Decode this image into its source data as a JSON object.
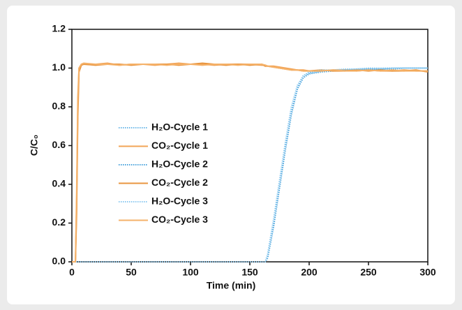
{
  "chart_data": {
    "type": "line",
    "xlabel": "Time (min)",
    "ylabel": "C/C₀",
    "x": [
      0,
      3,
      4,
      5,
      6,
      8,
      10,
      20,
      30,
      40,
      50,
      60,
      70,
      80,
      90,
      100,
      110,
      120,
      130,
      140,
      150,
      160,
      163,
      165,
      170,
      175,
      180,
      185,
      190,
      195,
      200,
      210,
      220,
      230,
      240,
      250,
      260,
      270,
      280,
      290,
      300
    ],
    "series": [
      {
        "name": "H₂O-Cycle 1",
        "color": "#6cb8e8",
        "dash": "dotted",
        "values": [
          0,
          0,
          0,
          0,
          0,
          0,
          0,
          0,
          0,
          0,
          0,
          0,
          0,
          0,
          0,
          0,
          0,
          0,
          0,
          0,
          0,
          0,
          0,
          0.03,
          0.2,
          0.4,
          0.6,
          0.78,
          0.9,
          0.96,
          0.975,
          0.985,
          0.99,
          0.99,
          0.995,
          0.995,
          0.995,
          1.0,
          1.0,
          1.0,
          1.0
        ]
      },
      {
        "name": "CO₂-Cycle 1",
        "color": "#f2a457",
        "dash": "solid",
        "values": [
          0,
          0,
          0.3,
          0.8,
          1.0,
          1.02,
          1.02,
          1.02,
          1.025,
          1.015,
          1.02,
          1.02,
          1.015,
          1.02,
          1.025,
          1.02,
          1.02,
          1.015,
          1.02,
          1.02,
          1.02,
          1.015,
          1.015,
          1.01,
          1.01,
          1.005,
          1.0,
          0.995,
          0.99,
          0.99,
          0.985,
          0.985,
          0.99,
          0.99,
          0.985,
          0.99,
          0.985,
          0.985,
          0.99,
          0.985,
          0.985
        ]
      },
      {
        "name": "H₂O-Cycle 2",
        "color": "#4aa3dc",
        "dash": "dotted",
        "values": [
          0,
          0,
          0,
          0,
          0,
          0,
          0,
          0,
          0,
          0,
          0,
          0,
          0,
          0,
          0,
          0,
          0,
          0,
          0,
          0,
          0,
          0,
          0,
          0.02,
          0.18,
          0.38,
          0.58,
          0.76,
          0.89,
          0.95,
          0.97,
          0.98,
          0.985,
          0.99,
          0.99,
          0.995,
          0.995,
          0.995,
          1.0,
          1.0,
          1.0
        ]
      },
      {
        "name": "CO₂-Cycle 2",
        "color": "#e8953f",
        "dash": "solid",
        "values": [
          0,
          0,
          0.25,
          0.75,
          0.98,
          1.015,
          1.02,
          1.015,
          1.02,
          1.02,
          1.015,
          1.02,
          1.02,
          1.02,
          1.015,
          1.02,
          1.025,
          1.02,
          1.015,
          1.02,
          1.015,
          1.02,
          1.01,
          1.01,
          1.005,
          1.0,
          0.995,
          0.99,
          0.99,
          0.985,
          0.985,
          0.99,
          0.985,
          0.985,
          0.99,
          0.985,
          0.99,
          0.985,
          0.985,
          0.99,
          0.98
        ]
      },
      {
        "name": "H₂O-Cycle 3",
        "color": "#8ccaf0",
        "dash": "dotted",
        "values": [
          0,
          0,
          0,
          0,
          0,
          0,
          0,
          0,
          0,
          0,
          0,
          0,
          0,
          0,
          0,
          0,
          0,
          0,
          0,
          0,
          0,
          0,
          0,
          0.04,
          0.22,
          0.42,
          0.62,
          0.8,
          0.91,
          0.96,
          0.98,
          0.99,
          0.99,
          0.995,
          0.995,
          1.0,
          1.0,
          1.0,
          1.0,
          1.0,
          1.0
        ]
      },
      {
        "name": "CO₂-Cycle 3",
        "color": "#f5b26a",
        "dash": "solid",
        "values": [
          0,
          0,
          0.35,
          0.85,
          1.0,
          1.02,
          1.025,
          1.02,
          1.02,
          1.015,
          1.02,
          1.02,
          1.02,
          1.015,
          1.02,
          1.02,
          1.015,
          1.02,
          1.02,
          1.015,
          1.02,
          1.02,
          1.015,
          1.01,
          1.005,
          1.0,
          0.995,
          0.99,
          0.99,
          0.985,
          0.985,
          0.985,
          0.99,
          0.985,
          0.985,
          0.99,
          0.985,
          0.99,
          0.985,
          0.985,
          0.985
        ]
      }
    ],
    "xlim": [
      0,
      300
    ],
    "ylim": [
      0,
      1.2
    ],
    "xticks": [
      0,
      50,
      100,
      150,
      200,
      250,
      300
    ],
    "yticks": [
      {
        "value": 0,
        "label": "0.0"
      },
      0.2,
      0.4,
      0.6,
      0.8,
      {
        "value": 1,
        "label": "1.0"
      },
      1.2
    ],
    "grid": false,
    "legend_position": "center left"
  }
}
